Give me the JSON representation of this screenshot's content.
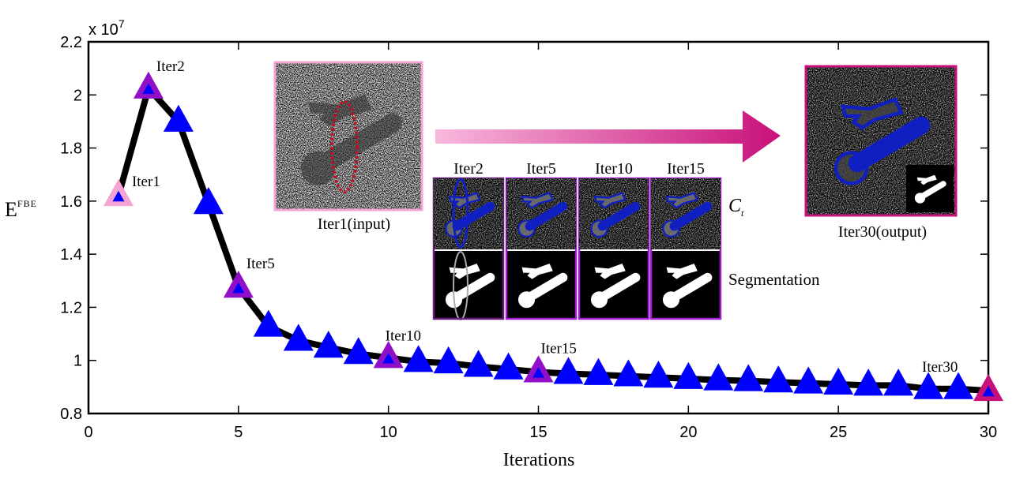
{
  "chart_data": {
    "type": "line",
    "xlabel": "Iterations",
    "ylabel": {
      "base": "E",
      "sup": "FBE"
    },
    "y_multiplier": {
      "base": "x 10",
      "exp": "7"
    },
    "xlim": [
      0,
      30
    ],
    "ylim": [
      0.8,
      2.2
    ],
    "x_ticks": [
      0,
      5,
      10,
      15,
      20,
      25,
      30
    ],
    "y_ticks": [
      0.8,
      1,
      1.2,
      1.4,
      1.6,
      1.8,
      2,
      2.2
    ],
    "y_tick_labels": [
      "0.8",
      "1",
      "1.2",
      "1.4",
      "1.6",
      "1.8",
      "2",
      "2.2"
    ],
    "grid": false,
    "series": [
      {
        "x": [
          1,
          2,
          3,
          4,
          5,
          6,
          7,
          8,
          9,
          10,
          11,
          12,
          13,
          14,
          15,
          16,
          17,
          18,
          19,
          20,
          21,
          22,
          23,
          24,
          25,
          26,
          27,
          28,
          29,
          30
        ],
        "y": [
          1.62,
          2.025,
          1.9,
          1.59,
          1.275,
          1.128,
          1.075,
          1.049,
          1.025,
          1.01,
          0.995,
          0.99,
          0.977,
          0.967,
          0.956,
          0.95,
          0.946,
          0.941,
          0.936,
          0.931,
          0.926,
          0.923,
          0.918,
          0.914,
          0.91,
          0.906,
          0.906,
          0.893,
          0.893,
          0.886
        ],
        "line_color": "#000000",
        "marker": "triangle",
        "marker_color": "#0000ff"
      }
    ],
    "highlighted_points": [
      {
        "x": 1,
        "label": "Iter1",
        "color": "#f4a3d2"
      },
      {
        "x": 2,
        "label": "Iter2",
        "color": "#9010c8"
      },
      {
        "x": 5,
        "label": "Iter5",
        "color": "#9010c8"
      },
      {
        "x": 10,
        "label": "Iter10",
        "color": "#9010c8"
      },
      {
        "x": 15,
        "label": "Iter15",
        "color": "#9010c8"
      },
      {
        "x": 30,
        "label": "Iter30",
        "color": "#c8107a"
      }
    ]
  },
  "insets": {
    "input_label": "Iter1(input)",
    "output_label": "Iter30(output)",
    "columns": [
      "Iter2",
      "Iter5",
      "Iter10",
      "Iter15"
    ],
    "row_label_ct": {
      "base": "C",
      "sub": "t"
    },
    "row_label_seg": "Segmentation",
    "colors": {
      "input_border": "#f4a3d2",
      "output_border": "#c8107a",
      "column_border": "#a020d0",
      "contour": "#0010b0",
      "ellipse": "#c01020"
    }
  }
}
